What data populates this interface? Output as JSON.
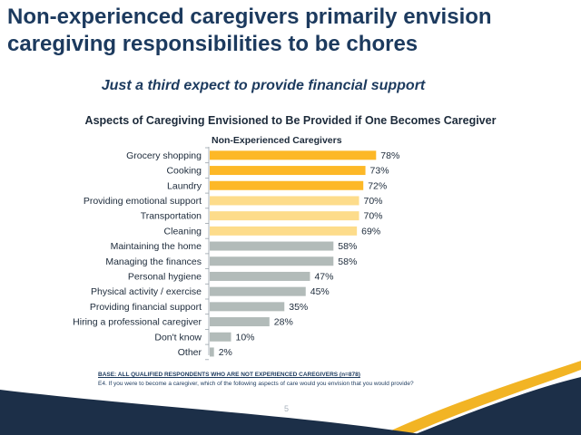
{
  "page": {
    "title": "Non-experienced caregivers primarily envision caregiving responsibilities to be chores",
    "subtitle": "Just a third expect to provide financial support",
    "footnote_base": "BASE: ALL QUALIFIED RESPONDENTS WHO ARE NOT EXPERIENCED CAREGIVERS (n=878)",
    "footnote_question": "E4. If you were to become a caregiver, which of the following aspects of care would you envision that you would provide?",
    "page_number": "5"
  },
  "colors": {
    "dark_navy": "#1c2f48",
    "gold": "#fdb827",
    "light_gold": "#fddc8b",
    "gray": "#b2bbb9",
    "title_blue": "#1c3a5e"
  },
  "chart_data": {
    "type": "bar",
    "orientation": "horizontal",
    "title": "Aspects of Caregiving Envisioned to Be Provided if One Becomes Caregiver",
    "series": [
      {
        "name": "Non-Experienced Caregivers",
        "values": [
          78,
          73,
          72,
          70,
          70,
          69,
          58,
          58,
          47,
          45,
          35,
          28,
          10,
          2
        ]
      }
    ],
    "categories": [
      "Grocery shopping",
      "Cooking",
      "Laundry",
      "Providing emotional support",
      "Transportation",
      "Cleaning",
      "Maintaining the home",
      "Managing the finances",
      "Personal hygiene",
      "Physical activity / exercise",
      "Providing financial support",
      "Hiring a professional caregiver",
      "Don't know",
      "Other"
    ],
    "data_labels": [
      "78%",
      "73%",
      "72%",
      "70%",
      "70%",
      "69%",
      "58%",
      "58%",
      "47%",
      "45%",
      "35%",
      "28%",
      "10%",
      "2%"
    ],
    "bar_color_groups": [
      "gold",
      "gold",
      "gold",
      "light_gold",
      "light_gold",
      "light_gold",
      "gray",
      "gray",
      "gray",
      "gray",
      "gray",
      "gray",
      "gray",
      "gray"
    ],
    "xlim": [
      0,
      100
    ],
    "grid": false,
    "legend": "none"
  }
}
